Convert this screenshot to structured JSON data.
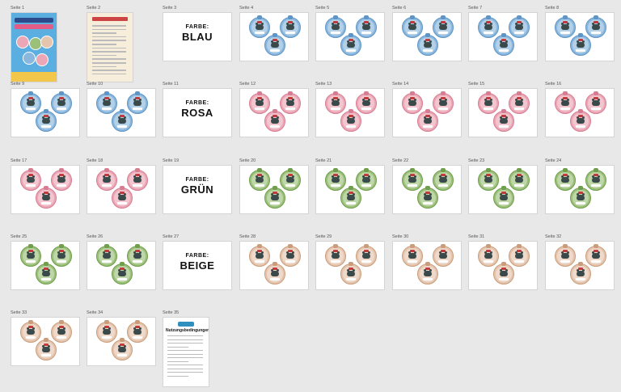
{
  "prefix": "Seite",
  "colors": {
    "blue": {
      "fill": "#8ab7dd",
      "stroke": "#5f95c6"
    },
    "pink": {
      "fill": "#eba7b6",
      "stroke": "#d67d92"
    },
    "green": {
      "fill": "#9cc07a",
      "stroke": "#6f9e4c"
    },
    "beige": {
      "fill": "#e5c5ae",
      "stroke": "#c99d7c"
    }
  },
  "pages": [
    {
      "label": "Seite 1",
      "kind": "cover"
    },
    {
      "label": "Seite 2",
      "kind": "instructions"
    },
    {
      "label": "Seite 3",
      "kind": "title",
      "farbe": "FARBE:",
      "color_name": "BLAU"
    },
    {
      "label": "Seite 4",
      "kind": "tags",
      "color": "blue"
    },
    {
      "label": "Seite 5",
      "kind": "tags",
      "color": "blue"
    },
    {
      "label": "Seite 6",
      "kind": "tags",
      "color": "blue"
    },
    {
      "label": "Seite 7",
      "kind": "tags",
      "color": "blue"
    },
    {
      "label": "Seite 8",
      "kind": "tags",
      "color": "blue"
    },
    {
      "label": "Seite 9",
      "kind": "tags",
      "color": "blue"
    },
    {
      "label": "Seite 10",
      "kind": "tags",
      "color": "blue"
    },
    {
      "label": "Seite 11",
      "kind": "title",
      "farbe": "FARBE:",
      "color_name": "ROSA"
    },
    {
      "label": "Seite 12",
      "kind": "tags",
      "color": "pink"
    },
    {
      "label": "Seite 13",
      "kind": "tags",
      "color": "pink"
    },
    {
      "label": "Seite 14",
      "kind": "tags",
      "color": "pink"
    },
    {
      "label": "Seite 15",
      "kind": "tags",
      "color": "pink"
    },
    {
      "label": "Seite 16",
      "kind": "tags",
      "color": "pink"
    },
    {
      "label": "Seite 17",
      "kind": "tags",
      "color": "pink"
    },
    {
      "label": "Seite 18",
      "kind": "tags",
      "color": "pink"
    },
    {
      "label": "Seite 19",
      "kind": "title",
      "farbe": "FARBE:",
      "color_name": "GRÜN"
    },
    {
      "label": "Seite 20",
      "kind": "tags",
      "color": "green"
    },
    {
      "label": "Seite 21",
      "kind": "tags",
      "color": "green"
    },
    {
      "label": "Seite 22",
      "kind": "tags",
      "color": "green"
    },
    {
      "label": "Seite 23",
      "kind": "tags",
      "color": "green"
    },
    {
      "label": "Seite 24",
      "kind": "tags",
      "color": "green"
    },
    {
      "label": "Seite 25",
      "kind": "tags",
      "color": "green"
    },
    {
      "label": "Seite 26",
      "kind": "tags",
      "color": "green"
    },
    {
      "label": "Seite 27",
      "kind": "title",
      "farbe": "FARBE:",
      "color_name": "BEIGE"
    },
    {
      "label": "Seite 28",
      "kind": "tags",
      "color": "beige"
    },
    {
      "label": "Seite 29",
      "kind": "tags",
      "color": "beige"
    },
    {
      "label": "Seite 30",
      "kind": "tags",
      "color": "beige"
    },
    {
      "label": "Seite 31",
      "kind": "tags",
      "color": "beige"
    },
    {
      "label": "Seite 32",
      "kind": "tags",
      "color": "beige"
    },
    {
      "label": "Seite 33",
      "kind": "tags",
      "color": "beige"
    },
    {
      "label": "Seite 34",
      "kind": "tags",
      "color": "beige"
    },
    {
      "label": "Seite 35",
      "kind": "terms",
      "heading": "Nutzungsbedingungen"
    }
  ]
}
